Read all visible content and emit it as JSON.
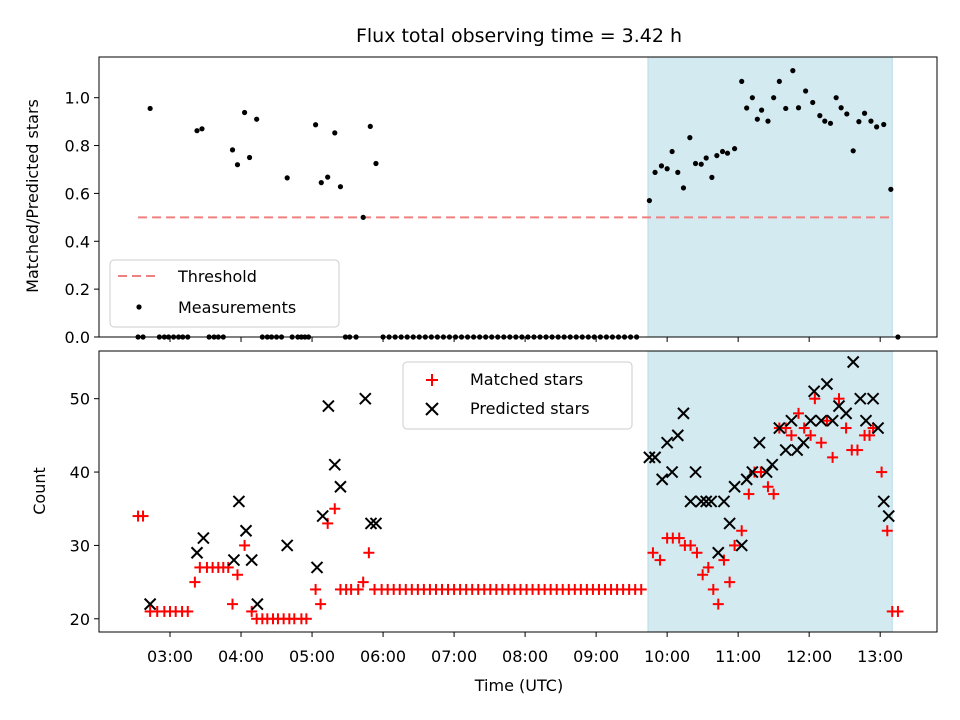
{
  "chart_data": [
    {
      "type": "scatter",
      "title": "Flux total observing time = 3.42 h",
      "ylabel": "Matched/Predicted stars",
      "xlabel": "",
      "x_unit": "hours UTC",
      "xlim": [
        2.0,
        13.8
      ],
      "ylim": [
        0.0,
        1.17
      ],
      "yticks": [
        0.0,
        0.2,
        0.4,
        0.6,
        0.8,
        1.0
      ],
      "ytick_labels": [
        "0.0",
        "0.2",
        "0.4",
        "0.6",
        "0.8",
        "1.0"
      ],
      "legend_position": "lower-left",
      "shaded_region": {
        "x": [
          9.73,
          13.17
        ],
        "color": "#d3eaf0"
      },
      "threshold": {
        "name": "Threshold",
        "y": 0.5,
        "x": [
          2.55,
          13.17
        ],
        "color": "#f08080"
      },
      "series": [
        {
          "name": "Measurements",
          "marker": "dot",
          "color": "#000000",
          "points": [
            [
              2.55,
              0
            ],
            [
              2.62,
              0
            ],
            [
              2.72,
              0.955
            ],
            [
              2.85,
              0
            ],
            [
              2.92,
              0
            ],
            [
              2.98,
              0
            ],
            [
              3.05,
              0
            ],
            [
              3.12,
              0
            ],
            [
              3.18,
              0
            ],
            [
              3.25,
              0
            ],
            [
              3.38,
              0.862
            ],
            [
              3.45,
              0.87
            ],
            [
              3.55,
              0
            ],
            [
              3.62,
              0
            ],
            [
              3.68,
              0
            ],
            [
              3.75,
              0
            ],
            [
              3.88,
              0.782
            ],
            [
              3.95,
              0.72
            ],
            [
              4.05,
              0.938
            ],
            [
              4.12,
              0.75
            ],
            [
              4.22,
              0.91
            ],
            [
              4.3,
              0
            ],
            [
              4.37,
              0
            ],
            [
              4.43,
              0
            ],
            [
              4.5,
              0
            ],
            [
              4.57,
              0
            ],
            [
              4.65,
              0.665
            ],
            [
              4.72,
              0
            ],
            [
              4.8,
              0
            ],
            [
              4.85,
              0
            ],
            [
              4.9,
              0
            ],
            [
              4.95,
              0
            ],
            [
              5.05,
              0.887
            ],
            [
              5.13,
              0.645
            ],
            [
              5.22,
              0.668
            ],
            [
              5.32,
              0.853
            ],
            [
              5.4,
              0.628
            ],
            [
              5.47,
              0
            ],
            [
              5.53,
              0
            ],
            [
              5.62,
              0
            ],
            [
              5.72,
              0.5
            ],
            [
              5.82,
              0.88
            ],
            [
              5.9,
              0.725
            ]
          ]
        }
      ],
      "zero_run": {
        "x_start": 6.0,
        "x_end": 9.58,
        "step": 0.085,
        "y": 0
      },
      "highlight_points": [
        [
          9.75,
          0.57
        ],
        [
          9.83,
          0.688
        ],
        [
          9.92,
          0.715
        ],
        [
          10.0,
          0.703
        ],
        [
          10.07,
          0.775
        ],
        [
          10.15,
          0.688
        ],
        [
          10.23,
          0.623
        ],
        [
          10.32,
          0.833
        ],
        [
          10.4,
          0.725
        ],
        [
          10.48,
          0.722
        ],
        [
          10.55,
          0.748
        ],
        [
          10.63,
          0.667
        ],
        [
          10.7,
          0.758
        ],
        [
          10.78,
          0.775
        ],
        [
          10.85,
          0.768
        ],
        [
          10.95,
          0.787
        ],
        [
          11.05,
          1.068
        ],
        [
          11.12,
          0.957
        ],
        [
          11.2,
          1.0
        ],
        [
          11.27,
          0.91
        ],
        [
          11.33,
          0.948
        ],
        [
          11.42,
          0.902
        ],
        [
          11.5,
          1.0
        ],
        [
          11.58,
          1.068
        ],
        [
          11.67,
          0.955
        ],
        [
          11.77,
          1.113
        ],
        [
          11.85,
          0.958
        ],
        [
          11.95,
          1.028
        ],
        [
          12.05,
          0.98
        ],
        [
          12.15,
          0.925
        ],
        [
          12.22,
          0.902
        ],
        [
          12.3,
          0.893
        ],
        [
          12.38,
          1.0
        ],
        [
          12.45,
          0.958
        ],
        [
          12.53,
          0.932
        ],
        [
          12.62,
          0.778
        ],
        [
          12.7,
          0.9
        ],
        [
          12.78,
          0.935
        ],
        [
          12.87,
          0.902
        ],
        [
          12.95,
          0.878
        ],
        [
          13.05,
          0.888
        ],
        [
          13.15,
          0.617
        ],
        [
          13.25,
          0
        ]
      ]
    },
    {
      "type": "scatter",
      "xlabel": "Time (UTC)",
      "ylabel": "Count",
      "x_unit": "hours UTC",
      "xlim": [
        2.0,
        13.8
      ],
      "ylim": [
        18.2,
        56.5
      ],
      "xticks": [
        3,
        4,
        5,
        6,
        7,
        8,
        9,
        10,
        11,
        12,
        13
      ],
      "xtick_labels": [
        "03:00",
        "04:00",
        "05:00",
        "06:00",
        "07:00",
        "08:00",
        "09:00",
        "10:00",
        "11:00",
        "12:00",
        "13:00"
      ],
      "yticks": [
        20,
        30,
        40,
        50
      ],
      "ytick_labels": [
        "20",
        "30",
        "40",
        "50"
      ],
      "legend_position": "top-center",
      "shaded_region": {
        "x": [
          9.73,
          13.17
        ],
        "color": "#d3eaf0"
      },
      "series": [
        {
          "name": "Matched stars",
          "marker": "plus",
          "color": "#ff0000",
          "points": [
            [
              2.55,
              34
            ],
            [
              2.62,
              34
            ],
            [
              2.72,
              21
            ],
            [
              2.82,
              21
            ],
            [
              2.92,
              21
            ],
            [
              3.0,
              21
            ],
            [
              3.08,
              21
            ],
            [
              3.17,
              21
            ],
            [
              3.25,
              21
            ],
            [
              3.35,
              25
            ],
            [
              3.42,
              27
            ],
            [
              3.52,
              27
            ],
            [
              3.6,
              27
            ],
            [
              3.68,
              27
            ],
            [
              3.75,
              27
            ],
            [
              3.82,
              27
            ],
            [
              3.88,
              22
            ],
            [
              3.95,
              26
            ],
            [
              4.05,
              30
            ],
            [
              4.15,
              21
            ],
            [
              4.22,
              20
            ],
            [
              4.3,
              20
            ],
            [
              4.37,
              20
            ],
            [
              4.45,
              20
            ],
            [
              4.52,
              20
            ],
            [
              4.6,
              20
            ],
            [
              4.68,
              20
            ],
            [
              4.75,
              20
            ],
            [
              4.85,
              20
            ],
            [
              4.92,
              20
            ],
            [
              5.05,
              24
            ],
            [
              5.12,
              22
            ],
            [
              5.22,
              33
            ],
            [
              5.32,
              35
            ],
            [
              5.4,
              24
            ],
            [
              5.48,
              24
            ],
            [
              5.55,
              24
            ],
            [
              5.65,
              24
            ],
            [
              5.72,
              25
            ],
            [
              5.8,
              29
            ],
            [
              5.88,
              24
            ]
          ],
          "run": {
            "x_start": 5.98,
            "x_end": 9.7,
            "step": 0.085,
            "y": 24
          },
          "highlight_points": [
            [
              9.8,
              29
            ],
            [
              9.9,
              28
            ],
            [
              10.0,
              31
            ],
            [
              10.08,
              31
            ],
            [
              10.17,
              31
            ],
            [
              10.25,
              30
            ],
            [
              10.33,
              30
            ],
            [
              10.42,
              29
            ],
            [
              10.5,
              26
            ],
            [
              10.58,
              27
            ],
            [
              10.65,
              24
            ],
            [
              10.72,
              22
            ],
            [
              10.8,
              28
            ],
            [
              10.88,
              25
            ],
            [
              10.95,
              30
            ],
            [
              11.05,
              32
            ],
            [
              11.15,
              37
            ],
            [
              11.23,
              40
            ],
            [
              11.32,
              40
            ],
            [
              11.42,
              38
            ],
            [
              11.5,
              37
            ],
            [
              11.58,
              46
            ],
            [
              11.67,
              46
            ],
            [
              11.75,
              45
            ],
            [
              11.85,
              48
            ],
            [
              11.93,
              46
            ],
            [
              12.02,
              45
            ],
            [
              12.08,
              50
            ],
            [
              12.17,
              44
            ],
            [
              12.25,
              47
            ],
            [
              12.33,
              42
            ],
            [
              12.42,
              50
            ],
            [
              12.52,
              46
            ],
            [
              12.6,
              43
            ],
            [
              12.68,
              43
            ],
            [
              12.78,
              45
            ],
            [
              12.85,
              45
            ],
            [
              12.9,
              46
            ],
            [
              13.02,
              40
            ],
            [
              13.1,
              32
            ],
            [
              13.17,
              21
            ],
            [
              13.25,
              21
            ]
          ]
        },
        {
          "name": "Predicted stars",
          "marker": "cross",
          "color": "#000000",
          "points": [
            [
              2.72,
              22
            ],
            [
              3.38,
              29
            ],
            [
              3.47,
              31
            ],
            [
              3.9,
              28
            ],
            [
              3.97,
              36
            ],
            [
              4.07,
              32
            ],
            [
              4.15,
              28
            ],
            [
              4.23,
              22
            ],
            [
              4.65,
              30
            ],
            [
              5.07,
              27
            ],
            [
              5.15,
              34
            ],
            [
              5.23,
              49
            ],
            [
              5.32,
              41
            ],
            [
              5.4,
              38
            ],
            [
              5.75,
              50
            ],
            [
              5.83,
              33
            ],
            [
              5.9,
              33
            ],
            [
              9.75,
              42
            ],
            [
              9.83,
              42
            ],
            [
              9.93,
              39
            ],
            [
              10.0,
              44
            ],
            [
              10.07,
              40
            ],
            [
              10.15,
              45
            ],
            [
              10.23,
              48
            ],
            [
              10.33,
              36
            ],
            [
              10.4,
              40
            ],
            [
              10.48,
              36
            ],
            [
              10.55,
              36
            ],
            [
              10.62,
              36
            ],
            [
              10.72,
              29
            ],
            [
              10.8,
              36
            ],
            [
              10.88,
              33
            ],
            [
              10.95,
              38
            ],
            [
              11.05,
              30
            ],
            [
              11.12,
              39
            ],
            [
              11.2,
              40
            ],
            [
              11.3,
              44
            ],
            [
              11.4,
              40
            ],
            [
              11.48,
              41
            ],
            [
              11.58,
              46
            ],
            [
              11.67,
              43
            ],
            [
              11.75,
              47
            ],
            [
              11.83,
              43
            ],
            [
              11.92,
              44
            ],
            [
              12.02,
              47
            ],
            [
              12.07,
              51
            ],
            [
              12.17,
              47
            ],
            [
              12.25,
              52
            ],
            [
              12.33,
              47
            ],
            [
              12.42,
              49
            ],
            [
              12.52,
              48
            ],
            [
              12.62,
              55
            ],
            [
              12.72,
              50
            ],
            [
              12.8,
              47
            ],
            [
              12.9,
              50
            ],
            [
              12.97,
              46
            ],
            [
              13.05,
              36
            ],
            [
              13.12,
              34
            ]
          ]
        }
      ]
    }
  ]
}
